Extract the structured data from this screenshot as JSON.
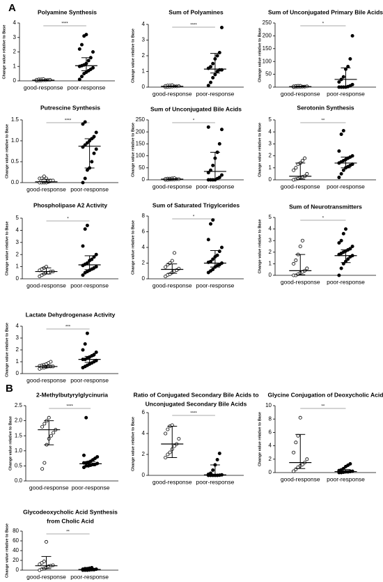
{
  "sections": [
    "A",
    "B"
  ],
  "chart_data": [
    {
      "type": "strip",
      "title": [
        "Polyamine Synthesis"
      ],
      "y_label": "Change value relative to Base",
      "categories": [
        "good-response",
        "poor-response"
      ],
      "ylim": [
        0,
        4
      ],
      "yticks": [
        0,
        1,
        2,
        3,
        4
      ],
      "significance": "****",
      "color": "#000000",
      "groups": [
        {
          "values": [
            0,
            0.02,
            0.03,
            0.05,
            0.05,
            0.06,
            0.07,
            0.08,
            0.1,
            0.1,
            0.12,
            0.05
          ],
          "median": 0.05,
          "q1": 0.02,
          "q3": 0.08,
          "filled": false
        },
        {
          "values": [
            0.1,
            0.3,
            0.5,
            0.6,
            0.7,
            0.8,
            0.9,
            1.0,
            1.05,
            1.1,
            1.2,
            1.4,
            1.6,
            2.0,
            2.2,
            2.5,
            3.1,
            3.2
          ],
          "median": 1.05,
          "q1": 0.7,
          "q3": 1.6,
          "filled": true
        }
      ]
    },
    {
      "type": "strip",
      "title": [
        "Sum of Polyamines"
      ],
      "y_label": "Change value relative to Base",
      "categories": [
        "good-response",
        "poor-response"
      ],
      "ylim": [
        0,
        4
      ],
      "yticks": [
        0,
        1,
        2,
        3,
        4
      ],
      "significance": "****",
      "color": "#000000",
      "groups": [
        {
          "values": [
            0,
            0.02,
            0.03,
            0.04,
            0.05,
            0.05,
            0.06,
            0.08,
            0.1,
            0.1,
            0.12
          ],
          "median": 0.05,
          "q1": 0.02,
          "q3": 0.08,
          "filled": false
        },
        {
          "values": [
            0.1,
            0.3,
            0.6,
            0.8,
            1.0,
            1.1,
            1.1,
            1.2,
            1.3,
            1.5,
            1.8,
            2.0,
            2.2,
            3.8
          ],
          "median": 1.15,
          "q1": 0.9,
          "q3": 2.15,
          "filled": true
        }
      ]
    },
    {
      "type": "strip",
      "title": [
        "Sum of Unconjugated Primary Bile Acids"
      ],
      "y_label": "Change value relative to Base",
      "categories": [
        "good-response",
        "poor-response"
      ],
      "ylim": [
        0,
        250
      ],
      "yticks": [
        0,
        50,
        100,
        150,
        200,
        250
      ],
      "significance": "*",
      "color": "#000000",
      "groups": [
        {
          "values": [
            0,
            0,
            1,
            1,
            2,
            2,
            3,
            3,
            4,
            5,
            5
          ],
          "median": 2,
          "q1": 0,
          "q3": 4,
          "filled": false
        },
        {
          "values": [
            0,
            0,
            0,
            0,
            2,
            5,
            10,
            20,
            30,
            40,
            70,
            80,
            110,
            200
          ],
          "median": 30,
          "q1": 0,
          "q3": 75,
          "filled": true
        }
      ]
    },
    {
      "type": "strip",
      "title": [
        "Putrescine Synthesis"
      ],
      "y_label": "Change value relative to Base",
      "categories": [
        "good-response",
        "poor-response"
      ],
      "ylim": [
        0,
        1.5
      ],
      "yticks": [
        {
          "value": 0,
          "label": "0.0"
        },
        {
          "value": 0.5,
          "label": "0.5"
        },
        {
          "value": 1,
          "label": "1.0"
        },
        {
          "value": 1.5,
          "label": "1.5"
        }
      ],
      "significance": "****",
      "color": "#000000",
      "groups": [
        {
          "values": [
            0,
            0,
            0,
            0,
            0.02,
            0.05,
            0.05,
            0.1,
            0.1,
            0.15,
            0.1
          ],
          "median": 0.02,
          "q1": 0,
          "q3": 0.08,
          "filled": false
        },
        {
          "values": [
            0,
            0.1,
            0.3,
            0.35,
            0.5,
            0.7,
            0.8,
            0.85,
            0.9,
            0.95,
            1.0,
            1.05,
            1.1,
            1.2,
            1.4,
            1.45
          ],
          "median": 0.87,
          "q1": 0.35,
          "q3": 1.05,
          "filled": true
        }
      ]
    },
    {
      "type": "strip",
      "title": [
        "Sum of Unconjugated Bile Acids"
      ],
      "y_label": "Change value relative to Base",
      "categories": [
        "good-response",
        "poor-response"
      ],
      "ylim": [
        0,
        250
      ],
      "yticks": [
        0,
        50,
        100,
        150,
        200,
        250
      ],
      "significance": "*",
      "color": "#000000",
      "groups": [
        {
          "values": [
            0,
            0,
            1,
            2,
            2,
            3,
            3,
            4,
            5,
            5,
            6,
            7
          ],
          "median": 3,
          "q1": 1,
          "q3": 5,
          "filled": false
        },
        {
          "values": [
            0,
            0,
            0,
            0,
            5,
            10,
            20,
            30,
            40,
            60,
            90,
            115,
            150,
            210,
            220
          ],
          "median": 35,
          "q1": 0,
          "q3": 115,
          "filled": true
        }
      ]
    },
    {
      "type": "strip",
      "title": [
        "Serotonin Synthesis"
      ],
      "y_label": "Change value relative to Base",
      "categories": [
        "good-response",
        "poor-response"
      ],
      "ylim": [
        0,
        5
      ],
      "yticks": [
        0,
        1,
        2,
        3,
        4,
        5
      ],
      "significance": "**",
      "color": "#000000",
      "groups": [
        {
          "values": [
            0,
            0.05,
            0.1,
            0.2,
            0.25,
            0.3,
            0.5,
            0.8,
            1.0,
            1.3,
            1.4,
            1.6,
            1.8
          ],
          "median": 0.3,
          "q1": 0.05,
          "q3": 1.4,
          "filled": false
        },
        {
          "values": [
            0.2,
            0.5,
            0.8,
            1.0,
            1.1,
            1.2,
            1.3,
            1.4,
            1.5,
            1.6,
            1.7,
            1.8,
            1.9,
            2.0,
            2.4,
            3.8,
            4.1
          ],
          "median": 1.4,
          "q1": 1.0,
          "q3": 1.9,
          "filled": true
        }
      ]
    },
    {
      "type": "strip",
      "title": [
        "Phospholipase A2 Activity"
      ],
      "y_label": "Change value relative to Base",
      "categories": [
        "good-response",
        "poor-response"
      ],
      "ylim": [
        0,
        5
      ],
      "yticks": [
        0,
        1,
        2,
        3,
        4,
        5
      ],
      "significance": "*",
      "color": "#000000",
      "groups": [
        {
          "values": [
            0.2,
            0.3,
            0.4,
            0.5,
            0.5,
            0.6,
            0.6,
            0.7,
            0.8,
            0.9,
            1.0
          ],
          "median": 0.6,
          "q1": 0.4,
          "q3": 0.9,
          "filled": false
        },
        {
          "values": [
            0.3,
            0.5,
            0.6,
            0.7,
            0.8,
            0.9,
            1.0,
            1.1,
            1.2,
            1.3,
            1.5,
            1.6,
            1.8,
            2.0,
            2.7,
            4.1,
            4.4
          ],
          "median": 1.15,
          "q1": 0.75,
          "q3": 1.9,
          "filled": true
        }
      ]
    },
    {
      "type": "strip",
      "title": [
        "Sum of Saturated Trigylcerides"
      ],
      "y_label": "Change value relative to Base",
      "categories": [
        "good-response",
        "poor-response"
      ],
      "ylim": [
        0,
        8
      ],
      "yticks": [
        0,
        2,
        4,
        6,
        8
      ],
      "significance": "*",
      "color": "#000000",
      "groups": [
        {
          "values": [
            0.3,
            0.5,
            0.6,
            0.8,
            1.0,
            1.1,
            1.3,
            1.5,
            1.8,
            2.0,
            2.3,
            3.3
          ],
          "median": 1.2,
          "q1": 0.7,
          "q3": 1.9,
          "filled": false
        },
        {
          "values": [
            0.8,
            1.0,
            1.2,
            1.5,
            1.7,
            1.8,
            2.0,
            2.1,
            2.2,
            2.5,
            2.8,
            3.0,
            3.5,
            4.0,
            5.0,
            7.0,
            7.5
          ],
          "median": 2.0,
          "q1": 1.5,
          "q3": 3.6,
          "filled": true
        }
      ]
    },
    {
      "type": "strip",
      "title": [
        "Sum of Neurotransmitters"
      ],
      "y_label": "Change value relative to Base",
      "categories": [
        "good-response",
        "poor-response"
      ],
      "ylim": [
        0,
        5
      ],
      "yticks": [
        0,
        1,
        2,
        3,
        4,
        5
      ],
      "significance": "*",
      "color": "#000000",
      "groups": [
        {
          "values": [
            0,
            0,
            0.1,
            0.2,
            0.3,
            0.4,
            0.6,
            1.0,
            1.3,
            1.8,
            2.5,
            3.0
          ],
          "median": 0.4,
          "q1": 0.05,
          "q3": 1.8,
          "filled": false
        },
        {
          "values": [
            0,
            0.6,
            1.0,
            1.2,
            1.4,
            1.6,
            1.7,
            1.8,
            1.9,
            2.0,
            2.1,
            2.2,
            2.3,
            2.5,
            2.8,
            3.0,
            3.6,
            4.0
          ],
          "median": 1.7,
          "q1": 1.1,
          "q3": 2.2,
          "filled": true
        }
      ]
    },
    {
      "type": "strip",
      "title": [
        "Lactate Dehydrogenase Activity"
      ],
      "y_label": "Change value relative to Base",
      "categories": [
        "good-response",
        "poor-response"
      ],
      "ylim": [
        0,
        4
      ],
      "yticks": [
        0,
        1,
        2,
        3,
        4
      ],
      "significance": "***",
      "color": "#000000",
      "groups": [
        {
          "values": [
            0.4,
            0.5,
            0.5,
            0.55,
            0.6,
            0.6,
            0.6,
            0.65,
            0.7,
            0.75,
            0.8,
            0.9,
            1.0
          ],
          "median": 0.6,
          "q1": 0.5,
          "q3": 0.7,
          "filled": false
        },
        {
          "values": [
            0.5,
            0.6,
            0.7,
            0.8,
            0.9,
            1.0,
            1.1,
            1.2,
            1.2,
            1.3,
            1.4,
            1.5,
            1.6,
            1.8,
            2.0,
            2.5,
            3.4
          ],
          "median": 1.2,
          "q1": 0.95,
          "q3": 1.45,
          "filled": true
        }
      ]
    },
    {
      "type": "strip",
      "title": [
        "2-Methylbutyrylglycinuria"
      ],
      "y_label": "Change value relative to Base",
      "categories": [
        "good-response",
        "poor-response"
      ],
      "ylim": [
        0,
        2.5
      ],
      "yticks": [
        {
          "value": 0,
          "label": "0.0"
        },
        {
          "value": 0.5,
          "label": "0.5"
        },
        {
          "value": 1,
          "label": "1.0"
        },
        {
          "value": 1.5,
          "label": "1.5"
        },
        {
          "value": 2,
          "label": "2.0"
        },
        {
          "value": 2.5,
          "label": "2.5"
        }
      ],
      "significance": "****",
      "color": "#000000",
      "groups": [
        {
          "values": [
            0.4,
            0.6,
            1.2,
            1.4,
            1.5,
            1.6,
            1.7,
            1.8,
            1.9,
            2.0,
            2.1
          ],
          "median": 1.7,
          "q1": 1.2,
          "q3": 2.0,
          "filled": false
        },
        {
          "values": [
            0.45,
            0.5,
            0.5,
            0.52,
            0.55,
            0.55,
            0.58,
            0.6,
            0.6,
            0.62,
            0.65,
            0.7,
            0.75,
            0.8,
            0.85,
            2.1
          ],
          "median": 0.57,
          "q1": 0.5,
          "q3": 0.65,
          "filled": true
        }
      ]
    },
    {
      "type": "strip",
      "title": [
        "Ratio of Conjugated Secondary Bile Acids to",
        "Unconjugated Secondary Bile Acids"
      ],
      "y_label": "Change value relative to Base",
      "categories": [
        "good-response",
        "poor-response"
      ],
      "ylim": [
        0,
        6
      ],
      "yticks": [
        0,
        2,
        4,
        6
      ],
      "significance": "****",
      "color": "#000000",
      "groups": [
        {
          "values": [
            1.7,
            2.0,
            2.2,
            2.5,
            2.8,
            3.0,
            3.5,
            4.0,
            4.4,
            4.7,
            4.8
          ],
          "median": 3.0,
          "q1": 1.7,
          "q3": 4.7,
          "filled": false
        },
        {
          "values": [
            0,
            0,
            0,
            0,
            0,
            0.02,
            0.05,
            0.1,
            0.2,
            0.5,
            1.0,
            1.5,
            2.1
          ],
          "median": 0.05,
          "q1": 0,
          "q3": 1.0,
          "filled": true
        }
      ]
    },
    {
      "type": "strip",
      "title": [
        "Glycine Conjugation of Deoxycholic Acid"
      ],
      "y_label": "Change value relative to Base",
      "categories": [
        "good-response",
        "poor-response"
      ],
      "ylim": [
        0,
        10
      ],
      "yticks": [
        0,
        2,
        4,
        6,
        8,
        10
      ],
      "significance": "**",
      "color": "#000000",
      "groups": [
        {
          "values": [
            0.2,
            0.5,
            0.8,
            1.0,
            1.2,
            1.5,
            2.0,
            3.0,
            4.5,
            5.5,
            8.2
          ],
          "median": 1.5,
          "q1": 0.6,
          "q3": 5.7,
          "filled": false
        },
        {
          "values": [
            0,
            0,
            0.05,
            0.1,
            0.1,
            0.15,
            0.2,
            0.3,
            0.4,
            0.6,
            0.9,
            1.1,
            1.3
          ],
          "median": 0.15,
          "q1": 0.05,
          "q3": 0.45,
          "filled": true
        }
      ]
    },
    {
      "type": "strip",
      "title": [
        "Glycodeoxycholic Acid Synthesis",
        "from Cholic Acid"
      ],
      "y_label": "Change value relative to Base",
      "categories": [
        "good-response",
        "poor-response"
      ],
      "ylim": [
        0,
        80
      ],
      "yticks": [
        0,
        20,
        40,
        60,
        80
      ],
      "significance": "**",
      "color": "#000000",
      "groups": [
        {
          "values": [
            0,
            2,
            3,
            5,
            8,
            9,
            10,
            12,
            15,
            18,
            58
          ],
          "median": 9,
          "q1": 3,
          "q3": 28,
          "filled": false
        },
        {
          "values": [
            0,
            0,
            0,
            0.5,
            1,
            1,
            2,
            2,
            3,
            3,
            4,
            5
          ],
          "median": 1.5,
          "q1": 0.5,
          "q3": 3,
          "filled": true
        }
      ]
    }
  ]
}
